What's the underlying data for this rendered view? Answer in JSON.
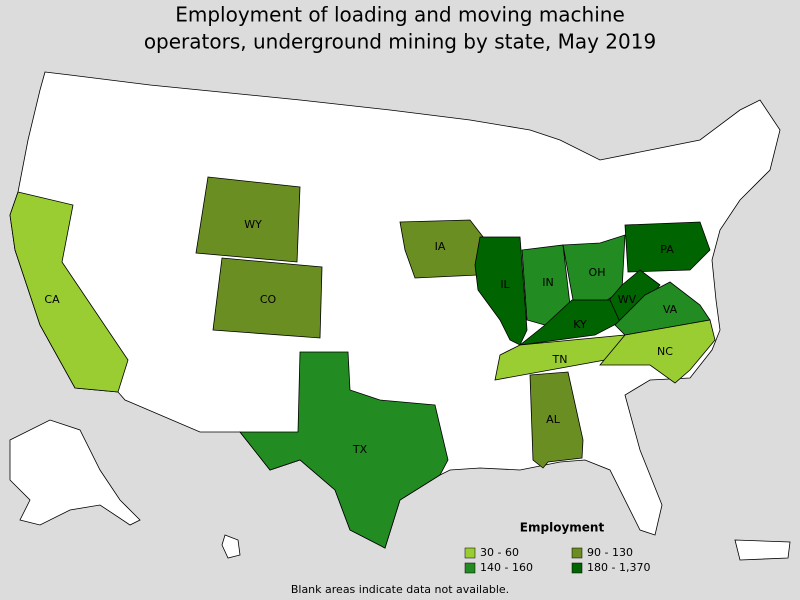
{
  "title": [
    "Employment of loading and moving machine",
    "operators, underground mining by state, May 2019"
  ],
  "legend": {
    "title": "Employment",
    "items": [
      {
        "label": "30 - 60",
        "color": "#9acd32"
      },
      {
        "label": "90 - 130",
        "color": "#6b8e23"
      },
      {
        "label": "140 - 160",
        "color": "#228b22"
      },
      {
        "label": "180 - 1,370",
        "color": "#006400"
      }
    ]
  },
  "states": [
    {
      "abbr": "CA",
      "color": "#9acd32"
    },
    {
      "abbr": "WY",
      "color": "#6b8e23"
    },
    {
      "abbr": "CO",
      "color": "#6b8e23"
    },
    {
      "abbr": "IA",
      "color": "#6b8e23"
    },
    {
      "abbr": "IL",
      "color": "#006400"
    },
    {
      "abbr": "IN",
      "color": "#228b22"
    },
    {
      "abbr": "OH",
      "color": "#228b22"
    },
    {
      "abbr": "PA",
      "color": "#006400"
    },
    {
      "abbr": "WV",
      "color": "#006400"
    },
    {
      "abbr": "KY",
      "color": "#006400"
    },
    {
      "abbr": "VA",
      "color": "#228b22"
    },
    {
      "abbr": "TN",
      "color": "#9acd32"
    },
    {
      "abbr": "NC",
      "color": "#9acd32"
    },
    {
      "abbr": "AL",
      "color": "#6b8e23"
    },
    {
      "abbr": "TX",
      "color": "#228b22"
    }
  ],
  "note": "Blank areas indicate data not available."
}
